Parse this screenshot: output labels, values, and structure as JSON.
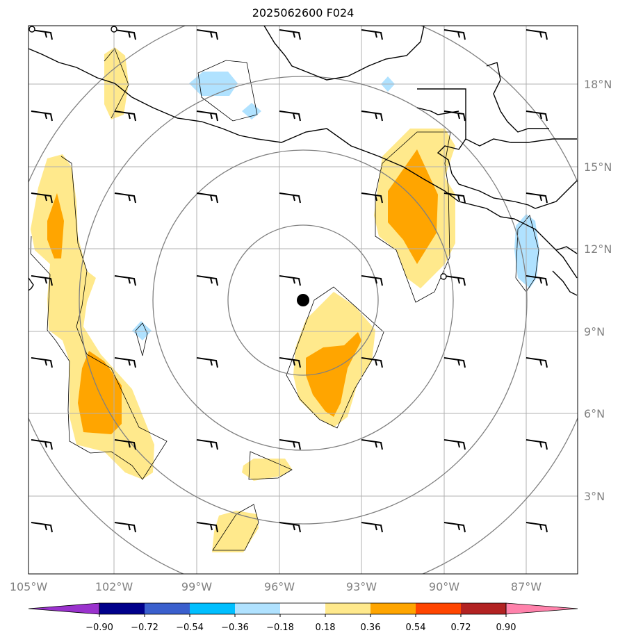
{
  "title": "2025062600 F024",
  "map": {
    "lon_range": [
      -105,
      -85
    ],
    "lat_range": [
      0,
      20
    ],
    "lon_ticks": [
      "105°W",
      "102°W",
      "99°W",
      "96°W",
      "93°W",
      "90°W",
      "87°W"
    ],
    "lat_ticks": [
      "18°N",
      "15°N",
      "12°N",
      "9°N",
      "6°N",
      "3°N"
    ],
    "grid_color": "#b0b0b0",
    "range_rings_color": "#808080",
    "center_marker": {
      "lon": -95.9,
      "lat": 10.1
    }
  },
  "colorbar": {
    "levels": [
      "−0.90",
      "−0.72",
      "−0.54",
      "−0.36",
      "−0.18",
      "0.18",
      "0.36",
      "0.54",
      "0.72",
      "0.90"
    ],
    "colors": [
      "#9a32cd",
      "#00008b",
      "#3a5fcd",
      "#00bfff",
      "#b0e2ff",
      "#ffffff",
      "#ffe98c",
      "#ffa500",
      "#ff4500",
      "#b22222",
      "#ff82ab"
    ]
  },
  "anomaly_colors": {
    "light_yellow": "#ffe98c",
    "orange": "#ffa500",
    "light_blue": "#b0e2ff"
  }
}
